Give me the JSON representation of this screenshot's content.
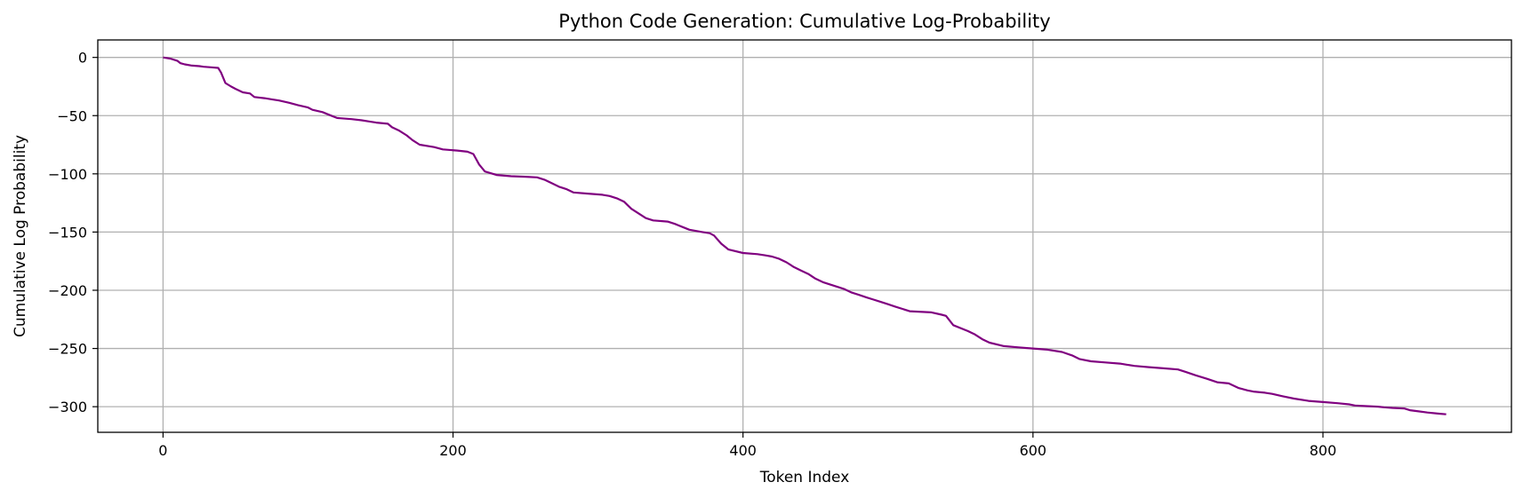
{
  "chart_data": {
    "type": "line",
    "title": "Python Code Generation: Cumulative Log-Probability",
    "xlabel": "Token Index",
    "ylabel": "Cumulative Log Probability",
    "xlim": [
      -45,
      930
    ],
    "ylim": [
      -322,
      15
    ],
    "xticks": [
      0,
      200,
      400,
      600,
      800
    ],
    "yticks": [
      0,
      -50,
      -100,
      -150,
      -200,
      -250,
      -300
    ],
    "grid": true,
    "colors": {
      "line": "#800080",
      "grid": "#b0b0b0",
      "axes": "#000000"
    },
    "series": [
      {
        "x": [
          0,
          5,
          10,
          12,
          15,
          20,
          25,
          28,
          33,
          38,
          40,
          43,
          47,
          50,
          55,
          60,
          63,
          70,
          75,
          80,
          87,
          93,
          100,
          103,
          110,
          116,
          120,
          130,
          137,
          142,
          147,
          155,
          158,
          163,
          168,
          172,
          177,
          187,
          193,
          203,
          210,
          214,
          218,
          222,
          230,
          240,
          250,
          258,
          263,
          268,
          273,
          278,
          283,
          293,
          303,
          308,
          313,
          318,
          323,
          333,
          338,
          348,
          353,
          363,
          372,
          377,
          380,
          385,
          390,
          400,
          410,
          415,
          420,
          425,
          430,
          435,
          440,
          445,
          450,
          455,
          460,
          465,
          470,
          475,
          480,
          485,
          490,
          495,
          500,
          505,
          510,
          515,
          530,
          537,
          540,
          545,
          555,
          560,
          565,
          570,
          580,
          590,
          600,
          610,
          620,
          627,
          632,
          640,
          650,
          660,
          665,
          670,
          680,
          690,
          700,
          705,
          712,
          720,
          727,
          735,
          742,
          748,
          752,
          760,
          765,
          772,
          780,
          790,
          800,
          810,
          818,
          822,
          830,
          838,
          842,
          848,
          856,
          860,
          866,
          872,
          880,
          885
        ],
        "y": [
          0,
          -1,
          -3,
          -5,
          -6,
          -7,
          -7.5,
          -8,
          -8.5,
          -9,
          -13,
          -22,
          -25,
          -27,
          -30,
          -31,
          -34,
          -35,
          -36,
          -37,
          -39,
          -41,
          -43,
          -45,
          -47,
          -50,
          -52,
          -53,
          -54,
          -55,
          -56,
          -57,
          -60,
          -63,
          -67,
          -71,
          -75,
          -77,
          -79,
          -80,
          -81,
          -83,
          -92,
          -98,
          -101,
          -102,
          -102.5,
          -103,
          -105,
          -108,
          -111,
          -113,
          -116,
          -117,
          -118,
          -119,
          -121,
          -124,
          -130,
          -138,
          -140,
          -141,
          -143,
          -148,
          -150,
          -151,
          -153,
          -160,
          -165,
          -168,
          -169,
          -170,
          -171,
          -173,
          -176,
          -180,
          -183,
          -186,
          -190,
          -193,
          -195,
          -197,
          -199,
          -202,
          -204,
          -206,
          -208,
          -210,
          -212,
          -214,
          -216,
          -218,
          -219,
          -221,
          -222,
          -230,
          -235,
          -238,
          -242,
          -245,
          -248,
          -249,
          -250,
          -251,
          -253,
          -256,
          -259,
          -261,
          -262,
          -263,
          -264,
          -265,
          -266,
          -267,
          -268,
          -270,
          -273,
          -276,
          -279,
          -280,
          -284,
          -286,
          -287,
          -288,
          -289,
          -291,
          -293,
          -295,
          -296,
          -297,
          -298,
          -299,
          -299.5,
          -300,
          -300.5,
          -301,
          -301.5,
          -303,
          -304,
          -305,
          -306,
          -306.5
        ]
      }
    ]
  }
}
